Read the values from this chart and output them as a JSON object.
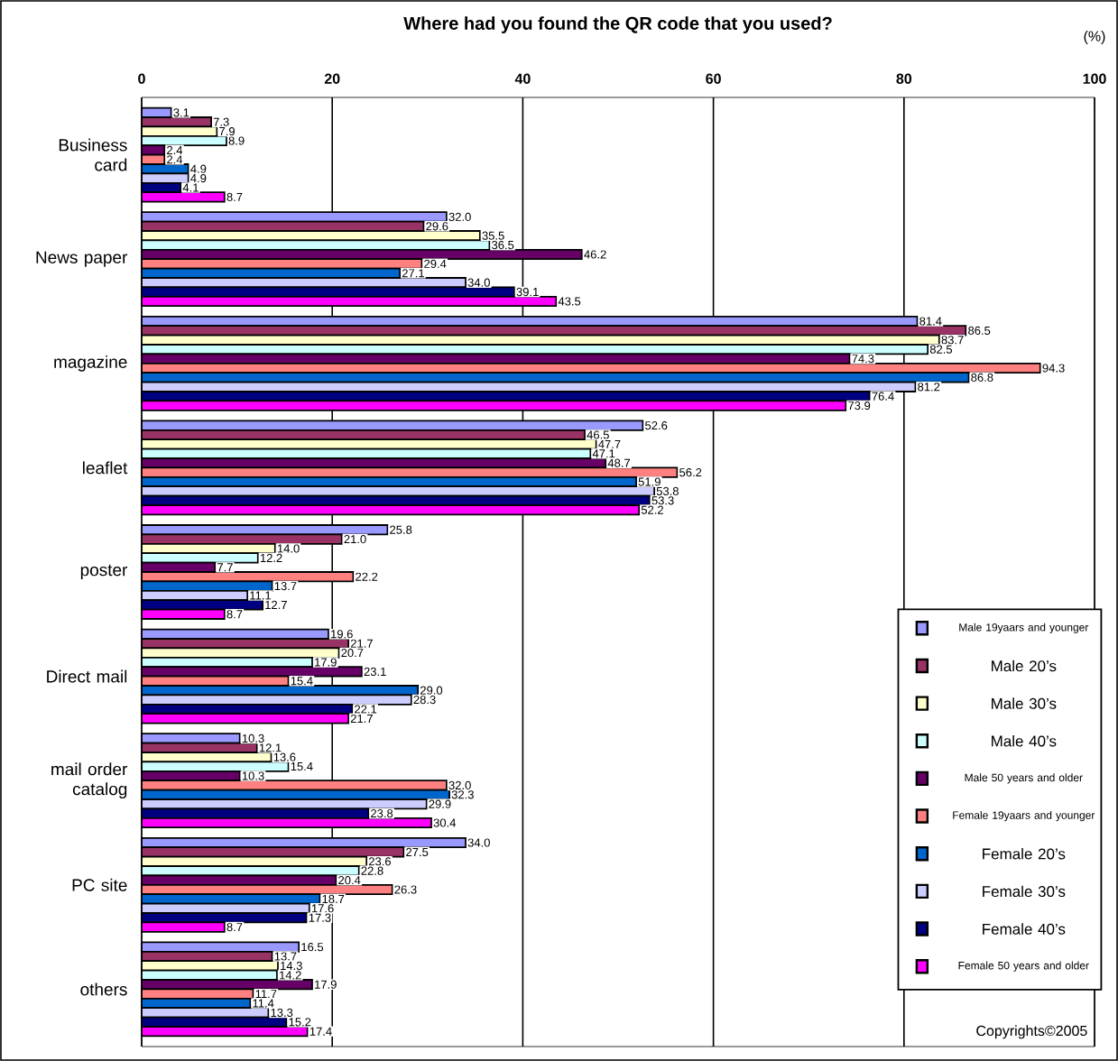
{
  "chart_data": {
    "type": "bar",
    "orientation": "horizontal",
    "title": "Where had you found the QR code that you used?",
    "xlabel": "(%)",
    "categories": [
      "Business card",
      "News paper",
      "magazine",
      "leaflet",
      "poster",
      "Direct mail",
      "mail order catalog",
      "PC site",
      "others"
    ],
    "series": [
      {
        "name": "Male 19yaars and younger",
        "color": "#9999ff",
        "values": [
          3.1,
          32.0,
          81.4,
          52.6,
          25.8,
          19.6,
          10.3,
          34.0,
          16.5
        ],
        "value_labels": [
          "3.1",
          "32.0",
          "81.4",
          "52.6",
          "25.8",
          "19.6",
          "10.3",
          "34.0",
          "16.5"
        ]
      },
      {
        "name": "Male 20’s",
        "color": "#993366",
        "values": [
          7.3,
          29.6,
          86.5,
          46.5,
          21.0,
          21.7,
          12.1,
          27.5,
          13.7
        ],
        "value_labels": [
          "7.3",
          "29.6",
          "86.5",
          "46.5",
          "21.0",
          "21.7",
          "12.1",
          "27.5",
          "13.7"
        ]
      },
      {
        "name": "Male 30’s",
        "color": "#ffffcc",
        "values": [
          7.9,
          35.5,
          83.7,
          47.7,
          14.0,
          20.7,
          13.6,
          23.6,
          14.3
        ],
        "value_labels": [
          "7.9",
          "35.5",
          "83.7",
          "47.7",
          "14.0",
          "20.7",
          "13.6",
          "23.6",
          "14.3"
        ]
      },
      {
        "name": "Male 40’s",
        "color": "#ccffff",
        "values": [
          8.9,
          36.5,
          82.5,
          47.1,
          12.2,
          17.9,
          15.4,
          22.8,
          14.2
        ],
        "value_labels": [
          "8.9",
          "36.5",
          "82.5",
          "47.1",
          "12.2",
          "17.9",
          "15.4",
          "22.8",
          "14.2"
        ]
      },
      {
        "name": "Male 50 years and older",
        "color": "#660066",
        "values": [
          2.4,
          46.2,
          74.3,
          48.7,
          7.7,
          23.1,
          10.3,
          20.4,
          17.9
        ],
        "value_labels": [
          "2.4",
          "46.2",
          "74.3",
          "48.7",
          "7.7",
          "23.1",
          "10.3",
          "20.4",
          "17.9"
        ]
      },
      {
        "name": "Female 19yaars and younger",
        "color": "#ff8080",
        "values": [
          2.4,
          29.4,
          94.3,
          56.2,
          22.2,
          15.4,
          32.0,
          26.3,
          11.7
        ],
        "value_labels": [
          "2.4",
          "29.4",
          "94.3",
          "56.2",
          "22.2",
          "15.4",
          "32.0",
          "26.3",
          "11.7"
        ]
      },
      {
        "name": "Female 20’s",
        "color": "#0066cc",
        "values": [
          4.9,
          27.1,
          86.8,
          51.9,
          13.7,
          29.0,
          32.3,
          18.7,
          11.4
        ],
        "value_labels": [
          "4.9",
          "27.1",
          "86.8",
          "51.9",
          "13.7",
          "29.0",
          "32.3",
          "18.7",
          "11.4"
        ]
      },
      {
        "name": "Female 30’s",
        "color": "#ccccff",
        "values": [
          4.9,
          34.0,
          81.2,
          53.8,
          11.1,
          28.3,
          29.9,
          17.6,
          13.3
        ],
        "value_labels": [
          "4.9",
          "34.0",
          "81.2",
          "53.8",
          "11.1",
          "28.3",
          "29.9",
          "17.6",
          "13.3"
        ]
      },
      {
        "name": "Female 40’s",
        "color": "#000080",
        "values": [
          4.1,
          39.1,
          76.4,
          53.3,
          12.7,
          22.1,
          23.8,
          17.3,
          15.2
        ],
        "value_labels": [
          "4.1",
          "39.1",
          "76.4",
          "53.3",
          "12.7",
          "22.1",
          "23.8",
          "17.3",
          "15.2"
        ]
      },
      {
        "name": "Female 50 years and older",
        "color": "#ff00ff",
        "values": [
          8.7,
          43.5,
          73.9,
          52.2,
          8.7,
          21.7,
          30.4,
          8.7,
          17.4
        ],
        "value_labels": [
          "8.7",
          "43.5",
          "73.9",
          "52.2",
          "8.7",
          "21.7",
          "30.4",
          "8.7",
          "17.4"
        ]
      }
    ],
    "xlim": [
      0,
      100
    ],
    "xticks": [
      0,
      20,
      40,
      60,
      80,
      100
    ],
    "grid": "x",
    "legend": "bottom right",
    "annotations": [
      "Copyrights©2005"
    ]
  }
}
